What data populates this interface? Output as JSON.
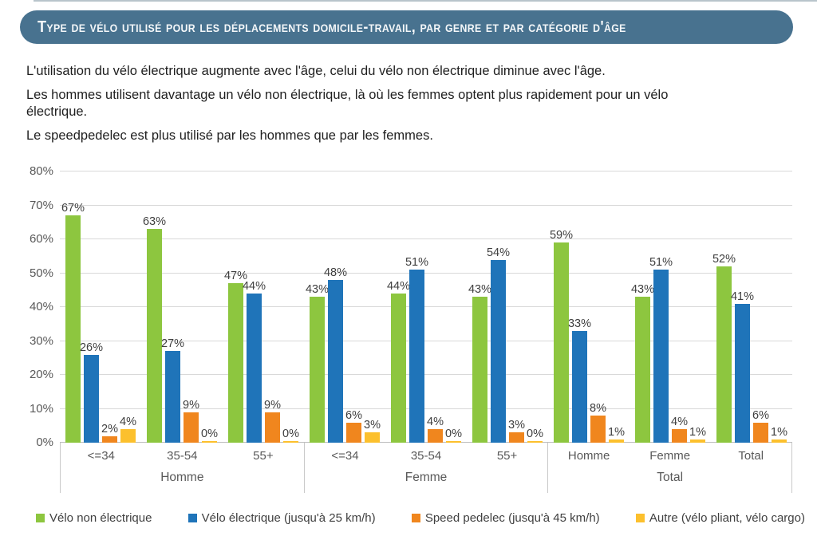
{
  "header": {
    "title": "Type de vélo utilisé pour les déplacements domicile-travail, par genre et par catégorie d'âge",
    "banner_color": "#48728f"
  },
  "intro": {
    "paragraphs": [
      {
        "lines": [
          "L'utilisation du vélo électrique augmente avec l'âge, celui du vélo non électrique diminue avec l'âge."
        ]
      },
      {
        "lines": [
          "Les hommes utilisent davantage un vélo non électrique, là où les femmes optent plus rapidement pour un vélo",
          "électrique."
        ]
      },
      {
        "lines": [
          "Le speedpedelec est plus utilisé par les hommes que par les femmes."
        ]
      }
    ]
  },
  "chart_data": {
    "type": "bar",
    "title": "",
    "xlabel": "",
    "ylabel": "",
    "ylim": [
      0,
      80
    ],
    "ytick_labels": [
      "0%",
      "10%",
      "20%",
      "30%",
      "40%",
      "50%",
      "60%",
      "70%",
      "80%"
    ],
    "grid": true,
    "gridline_color": "#d9d9d9",
    "data_labels": true,
    "data_label_suffix": "%",
    "legend_position": "bottom",
    "groups": [
      {
        "label": "Homme",
        "categories": [
          "<=34",
          "35-54",
          "55+"
        ]
      },
      {
        "label": "Femme",
        "categories": [
          "<=34",
          "35-54",
          "55+"
        ]
      },
      {
        "label": "Total",
        "categories": [
          "Homme",
          "Femme",
          "Total"
        ]
      }
    ],
    "series": [
      {
        "name": "Vélo non électrique",
        "color": "#8dc63f",
        "values": [
          [
            67,
            63,
            47
          ],
          [
            43,
            44,
            43
          ],
          [
            59,
            43,
            52
          ]
        ]
      },
      {
        "name": "Vélo électrique (jusqu'à 25 km/h)",
        "color": "#1f74b9",
        "values": [
          [
            26,
            27,
            44
          ],
          [
            48,
            51,
            54
          ],
          [
            33,
            51,
            41
          ]
        ]
      },
      {
        "name": "Speed pedelec (jusqu'à 45 km/h)",
        "color": "#f0861e",
        "values": [
          [
            2,
            9,
            9
          ],
          [
            6,
            4,
            3
          ],
          [
            8,
            4,
            6
          ]
        ]
      },
      {
        "name": "Autre (vélo pliant, vélo cargo)",
        "color": "#fcc02d",
        "values": [
          [
            4,
            0,
            0
          ],
          [
            3,
            0,
            0
          ],
          [
            1,
            1,
            1
          ]
        ]
      }
    ]
  }
}
